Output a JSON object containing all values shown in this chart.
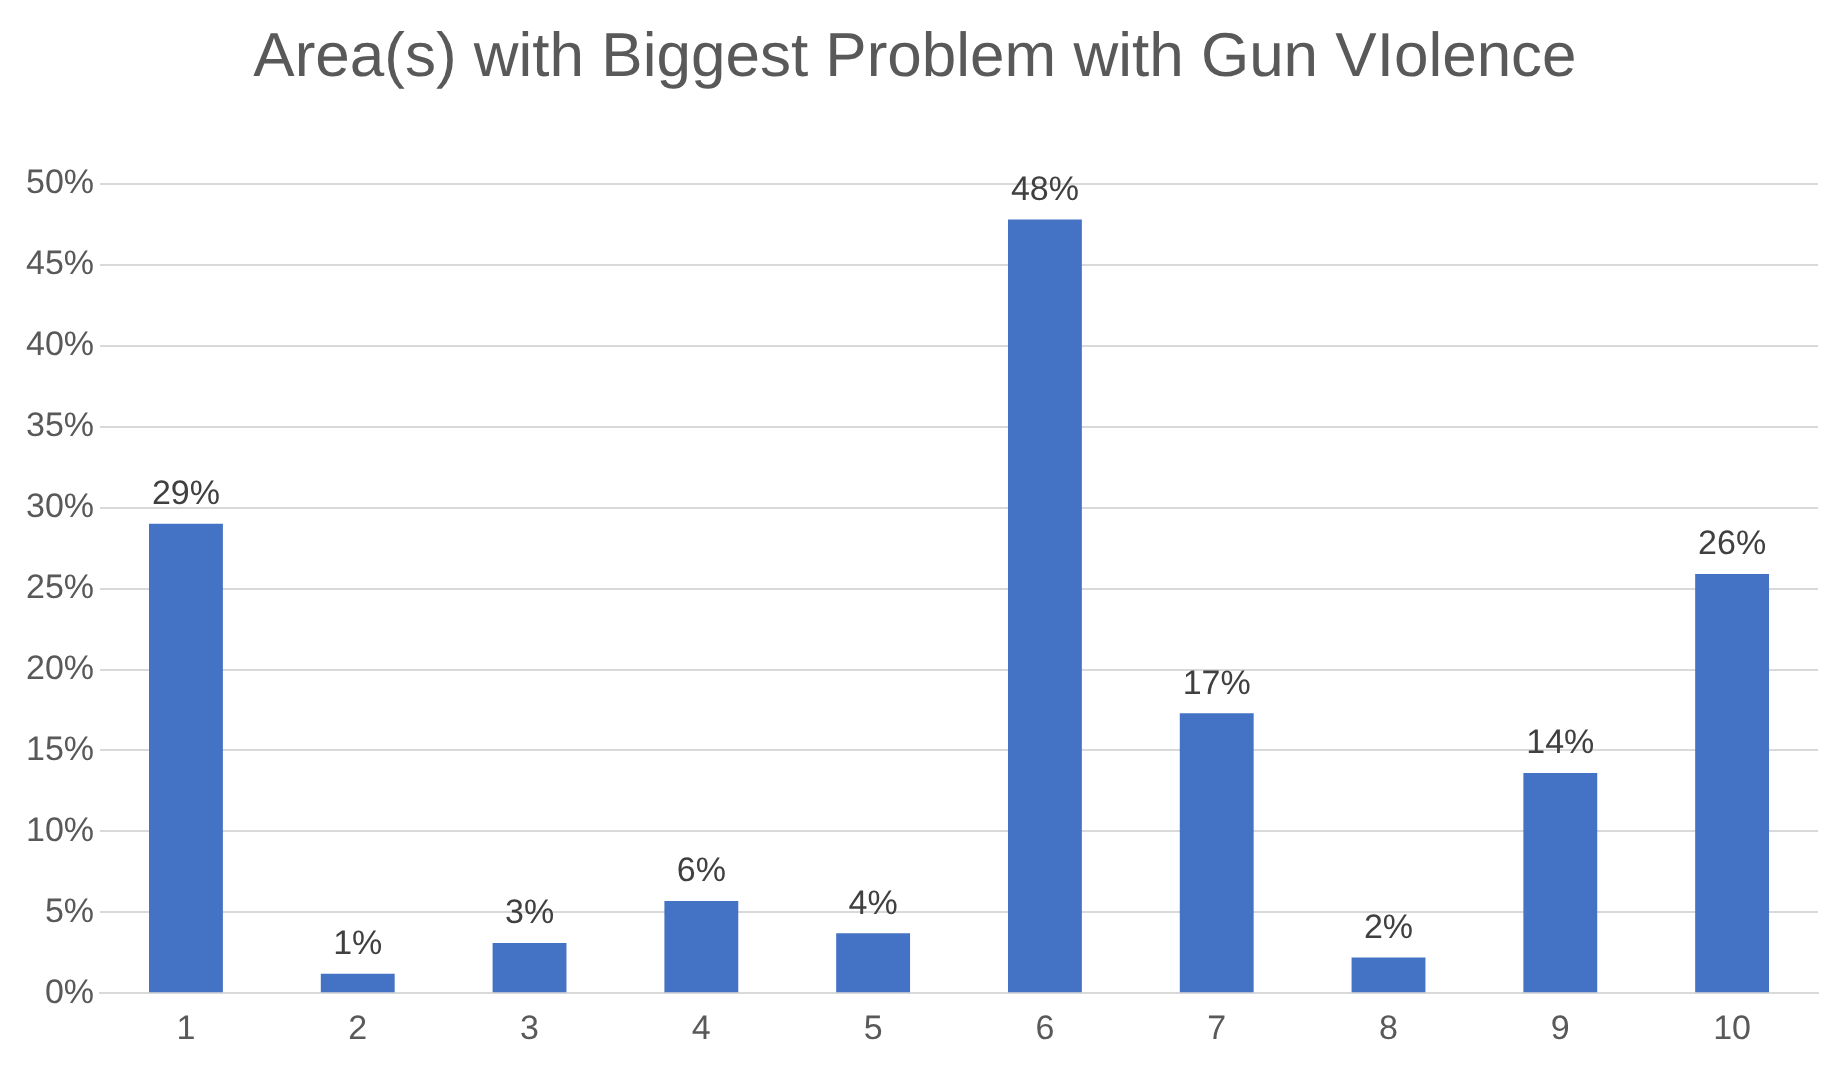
{
  "chart_data": {
    "type": "bar",
    "title": "Area(s) with Biggest Problem with Gun VIolence",
    "categories": [
      "1",
      "2",
      "3",
      "4",
      "5",
      "6",
      "7",
      "8",
      "9",
      "10"
    ],
    "values": [
      29,
      1.2,
      3.1,
      5.7,
      3.7,
      47.8,
      17.3,
      2.2,
      13.6,
      25.9
    ],
    "value_labels": [
      "29%",
      "1%",
      "3%",
      "6%",
      "4%",
      "48%",
      "17%",
      "2%",
      "14%",
      "26%"
    ],
    "color": "#4472c4",
    "ylim": [
      0,
      50
    ],
    "yticks": [
      {
        "value": 0,
        "label": "0%"
      },
      {
        "value": 5,
        "label": "5%"
      },
      {
        "value": 10,
        "label": "10%"
      },
      {
        "value": 15,
        "label": "15%"
      },
      {
        "value": 20,
        "label": "20%"
      },
      {
        "value": 25,
        "label": "25%"
      },
      {
        "value": 30,
        "label": "30%"
      },
      {
        "value": 35,
        "label": "35%"
      },
      {
        "value": 40,
        "label": "40%"
      },
      {
        "value": 45,
        "label": "45%"
      },
      {
        "value": 50,
        "label": "50%"
      }
    ],
    "grid": "y",
    "legend": false
  }
}
